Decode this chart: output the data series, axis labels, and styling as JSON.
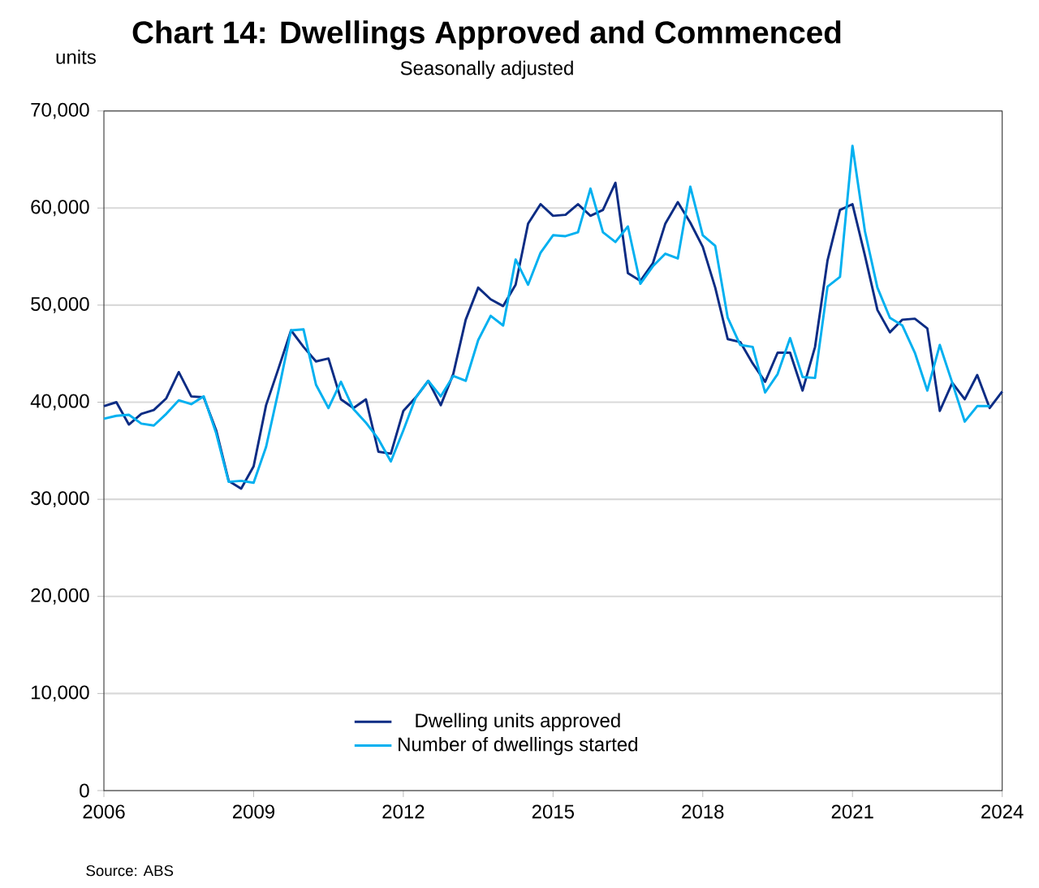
{
  "chart_data": {
    "type": "line",
    "title": "Chart 14: Dwellings Approved and Commenced",
    "subtitle": "Seasonally adjusted",
    "ylabel": "units",
    "annotations": [
      "Source: ABS"
    ],
    "x": [
      2006,
      2006.25,
      2006.5,
      2006.75,
      2007,
      2007.25,
      2007.5,
      2007.75,
      2008,
      2008.25,
      2008.5,
      2008.75,
      2009,
      2009.25,
      2009.5,
      2009.75,
      2010,
      2010.25,
      2010.5,
      2010.75,
      2011,
      2011.25,
      2011.5,
      2011.75,
      2012,
      2012.25,
      2012.5,
      2012.75,
      2013,
      2013.25,
      2013.5,
      2013.75,
      2014,
      2014.25,
      2014.5,
      2014.75,
      2015,
      2015.25,
      2015.5,
      2015.75,
      2016,
      2016.25,
      2016.5,
      2016.75,
      2017,
      2017.25,
      2017.5,
      2017.75,
      2018,
      2018.25,
      2018.5,
      2018.75,
      2019,
      2019.25,
      2019.5,
      2019.75,
      2020,
      2020.25,
      2020.5,
      2020.75,
      2021,
      2021.25,
      2021.5,
      2021.75,
      2022,
      2022.25,
      2022.5,
      2022.75,
      2023,
      2023.25,
      2023.5,
      2023.75,
      2024
    ],
    "series": [
      {
        "name": "Dwelling units approved",
        "color": "#0c2c84",
        "values": [
          39600,
          40000,
          37700,
          38800,
          39200,
          40400,
          43100,
          40600,
          40500,
          37100,
          31900,
          31100,
          33400,
          39700,
          43500,
          47400,
          45700,
          44200,
          44500,
          40300,
          39400,
          40300,
          34900,
          34700,
          39100,
          40500,
          42200,
          39700,
          42900,
          48500,
          51800,
          50600,
          49900,
          52100,
          58400,
          60400,
          59200,
          59300,
          60400,
          59200,
          59800,
          62600,
          53300,
          52500,
          54300,
          58400,
          60600,
          58500,
          56000,
          51800,
          46500,
          46200,
          44000,
          42100,
          45100,
          45100,
          41200,
          45700,
          54600,
          59800,
          60400,
          55100,
          49500,
          47200,
          48500,
          48600,
          47600,
          39100,
          42000,
          40300,
          42800,
          39400,
          41100
        ]
      },
      {
        "name": "Number of dwellings started",
        "color": "#00b0f0",
        "x": [
          2006,
          2006.25,
          2006.5,
          2006.75,
          2007,
          2007.25,
          2007.5,
          2007.75,
          2008,
          2008.25,
          2008.5,
          2008.75,
          2009,
          2009.25,
          2009.5,
          2009.75,
          2010,
          2010.25,
          2010.5,
          2010.75,
          2011,
          2011.25,
          2011.5,
          2011.75,
          2012,
          2012.25,
          2012.5,
          2012.75,
          2013,
          2013.25,
          2013.5,
          2013.75,
          2014,
          2014.25,
          2014.5,
          2014.75,
          2015,
          2015.25,
          2015.5,
          2015.75,
          2016,
          2016.25,
          2016.5,
          2016.75,
          2017,
          2017.25,
          2017.5,
          2017.75,
          2018,
          2018.25,
          2018.5,
          2018.75,
          2019,
          2019.25,
          2019.5,
          2019.75,
          2020,
          2020.25,
          2020.5,
          2020.75,
          2021,
          2021.25,
          2021.5,
          2021.75,
          2022,
          2022.25,
          2022.5,
          2022.75,
          2023,
          2023.25,
          2023.5,
          2023.75
        ],
        "values": [
          38300,
          38600,
          38700,
          37800,
          37600,
          38800,
          40200,
          39800,
          40600,
          36800,
          31800,
          31900,
          31700,
          35400,
          41200,
          47400,
          47500,
          41800,
          39400,
          42100,
          39300,
          37900,
          36200,
          33900,
          37100,
          40500,
          42200,
          40600,
          42700,
          42200,
          46400,
          48900,
          47900,
          54700,
          52100,
          55400,
          57200,
          57100,
          57500,
          62000,
          57500,
          56500,
          58100,
          52200,
          54000,
          55300,
          54800,
          62200,
          57200,
          56100,
          48700,
          45900,
          45700,
          41000,
          42900,
          46600,
          42600,
          42500,
          51900,
          52900,
          66400,
          57600,
          51800,
          48700,
          47900,
          45100,
          41200,
          45900,
          42000,
          38000,
          39600,
          39600
        ]
      }
    ],
    "xlim": [
      2006,
      2024
    ],
    "xticks": [
      2006,
      2009,
      2012,
      2015,
      2018,
      2021,
      2024
    ],
    "ylim": [
      0,
      70000
    ],
    "yticks": [
      0,
      {
        "value": 10000,
        "label": "10,000"
      },
      {
        "value": 20000,
        "label": "20,000"
      },
      {
        "value": 30000,
        "label": "30,000"
      },
      {
        "value": 40000,
        "label": "40,000"
      },
      {
        "value": 50000,
        "label": "50,000"
      },
      {
        "value": 60000,
        "label": "60,000"
      },
      {
        "value": 70000,
        "label": "70,000"
      }
    ],
    "grid": "y",
    "legend": "bottom left"
  }
}
